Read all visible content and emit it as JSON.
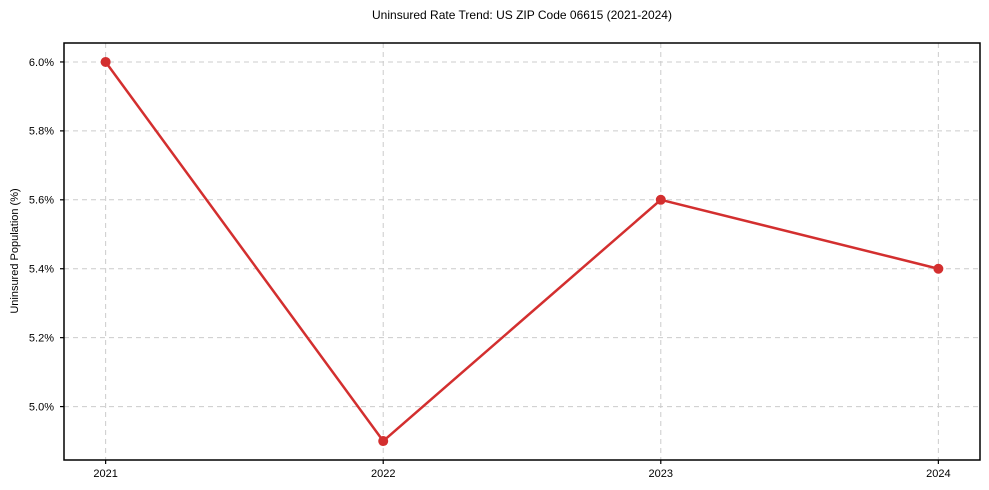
{
  "chart_data": {
    "type": "line",
    "title": "Uninsured Rate Trend: US ZIP Code 06615 (2021-2024)",
    "xlabel": "",
    "ylabel": "Uninsured Population (%)",
    "x": [
      2021,
      2022,
      2023,
      2024
    ],
    "x_tick_labels": [
      "2021",
      "2022",
      "2023",
      "2024"
    ],
    "series": [
      {
        "name": "Uninsured rate",
        "values": [
          6.0,
          4.9,
          5.6,
          5.4
        ],
        "color": "#d32f2f",
        "marker": "circle"
      }
    ],
    "y_ticks": [
      5.0,
      5.2,
      5.4,
      5.6,
      5.8,
      6.0
    ],
    "y_tick_labels": [
      "5.0%",
      "5.2%",
      "5.4%",
      "5.6%",
      "5.8%",
      "6.0%"
    ],
    "xlim": [
      2020.85,
      2024.15
    ],
    "ylim": [
      4.845,
      6.055
    ],
    "grid": true,
    "legend": false,
    "colors": {
      "line": "#d32f2f",
      "grid": "#cccccc",
      "frame": "#000000",
      "text": "#000000",
      "background": "#ffffff"
    }
  }
}
